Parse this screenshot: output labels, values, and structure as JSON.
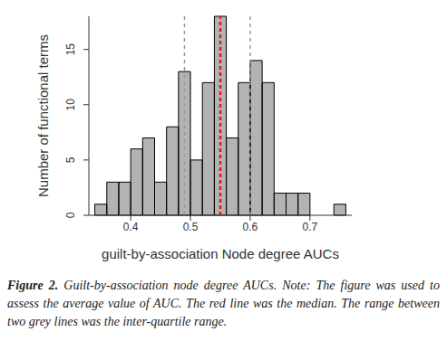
{
  "chart_data": {
    "type": "histogram",
    "x_label": "guilt-by-association Node degree AUCs",
    "y_label": "Number of functional terms",
    "bins": [
      0.34,
      0.36,
      0.38,
      0.4,
      0.42,
      0.44,
      0.46,
      0.48,
      0.5,
      0.52,
      0.54,
      0.56,
      0.58,
      0.6,
      0.62,
      0.64,
      0.66,
      0.68,
      0.7,
      0.72,
      0.74,
      0.76
    ],
    "counts": [
      1,
      3,
      3,
      6,
      7,
      3,
      8,
      13,
      5,
      12,
      18,
      7,
      12,
      14,
      12,
      2,
      2,
      2,
      0,
      0,
      1
    ],
    "color": "#b3b3b3",
    "median": 0.55,
    "median_color": "#e31a1c",
    "interquartile_range": [
      0.49,
      0.6
    ],
    "interquartile_color": "#999999",
    "xlim": [
      0.33,
      0.77
    ],
    "xticks": [
      0.4,
      0.5,
      0.6,
      0.7
    ],
    "ylim": [
      0,
      18
    ],
    "yticks": [
      0,
      5,
      10,
      15
    ],
    "grid": false
  },
  "caption_label": "Figure 2.",
  "caption": "Guilt-by-association node degree AUCs. Note: The figure was used to assess the average value of AUC. The red line was the median. The range between two grey lines was the inter-quartile range."
}
